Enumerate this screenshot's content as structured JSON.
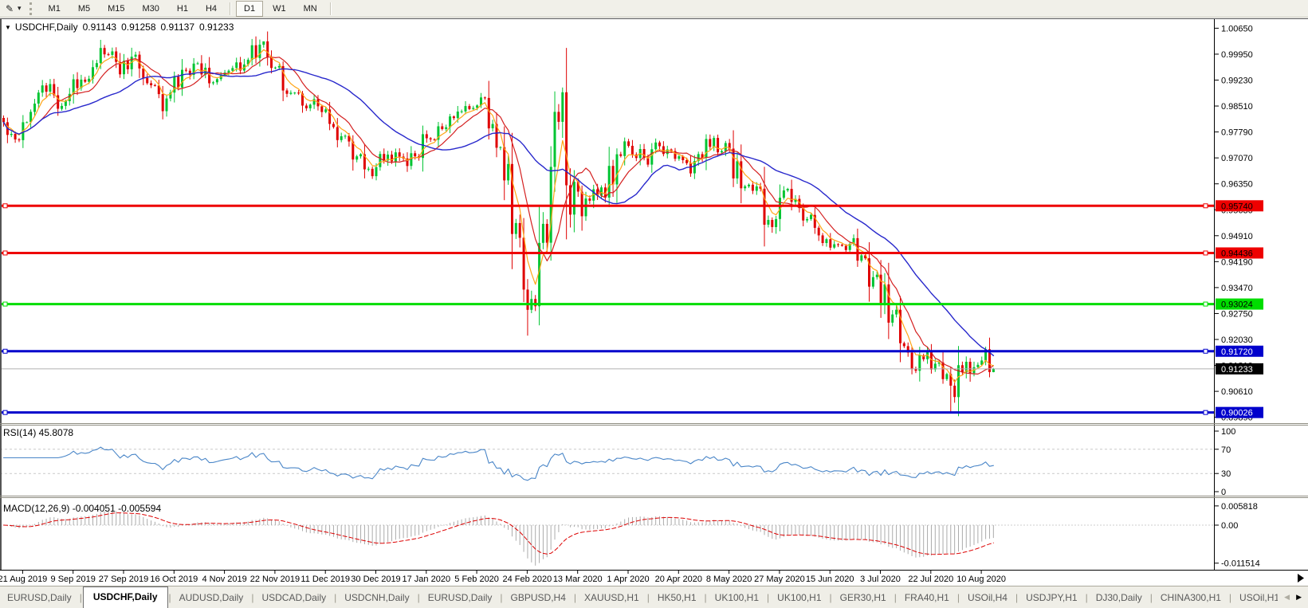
{
  "toolbar": {
    "chart_tool_icon": "pen-cursor-icon",
    "dropdown_icon": "caret-down-icon",
    "timeframes": [
      "M1",
      "M5",
      "M15",
      "M30",
      "H1",
      "H4",
      "D1",
      "W1",
      "MN"
    ],
    "active_timeframe": "D1"
  },
  "chart": {
    "title": {
      "symbol": "USDCHF,Daily",
      "open": "0.91143",
      "high": "0.91258",
      "low": "0.91137",
      "close": "0.91233"
    },
    "price_axis_ticks": [
      "1.00650",
      "0.99950",
      "0.99230",
      "0.98510",
      "0.97790",
      "0.97070",
      "0.96350",
      "0.95630",
      "0.94910",
      "0.94190",
      "0.93470",
      "0.92750",
      "0.92030",
      "0.91310",
      "0.90610",
      "0.89890"
    ],
    "date_axis": [
      "21 Aug 2019",
      "9 Sep 2019",
      "27 Sep 2019",
      "16 Oct 2019",
      "4 Nov 2019",
      "22 Nov 2019",
      "11 Dec 2019",
      "30 Dec 2019",
      "17 Jan 2020",
      "5 Feb 2020",
      "24 Feb 2020",
      "13 Mar 2020",
      "1 Apr 2020",
      "20 Apr 2020",
      "8 May 2020",
      "27 May 2020",
      "15 Jun 2020",
      "3 Jul 2020",
      "22 Jul 2020",
      "10 Aug 2020"
    ],
    "current_price_badge": {
      "label": "0.91233",
      "bg": "#000000",
      "fg": "#FFFFFF"
    }
  },
  "panes": {
    "rsi": {
      "label": "RSI(14) 45.8078",
      "axis": [
        "100",
        "70",
        "30",
        "0"
      ],
      "level_lines": [
        70,
        30
      ],
      "line_color": "#4A86C8"
    },
    "macd": {
      "label": "MACD(12,26,9) -0.004051 -0.005594",
      "axis": [
        "0.005818",
        "0.00",
        "-0.011514"
      ],
      "histogram_color": "#ABABAB",
      "signal_color": "#DD0000"
    }
  },
  "chart_data": {
    "type": "candlestick",
    "symbol": "USDCHF",
    "timeframe": "Daily",
    "visible_range": {
      "first_date": "21 Aug 2019",
      "last_date": "24 Aug 2020",
      "price_min": 0.8989,
      "price_max": 1.0065
    },
    "last_candle": {
      "open": 0.91143,
      "high": 0.91258,
      "low": 0.91137,
      "close": 0.91233
    },
    "current_price": 0.91233,
    "horizontal_lines": [
      {
        "price": 0.9574,
        "label": "0.95740",
        "color": "#EE0000",
        "label_text_color": "#000000",
        "role": "resistance"
      },
      {
        "price": 0.94436,
        "label": "0.94436",
        "color": "#EE0000",
        "label_text_color": "#000000",
        "role": "resistance"
      },
      {
        "price": 0.93024,
        "label": "0.93024",
        "color": "#00DD00",
        "label_text_color": "#000000",
        "role": "level"
      },
      {
        "price": 0.9172,
        "label": "0.91720",
        "color": "#0000CC",
        "label_text_color": "#FFFFFF",
        "role": "support"
      },
      {
        "price": 0.90026,
        "label": "0.90026",
        "color": "#0000CC",
        "label_text_color": "#FFFFFF",
        "role": "support"
      }
    ],
    "moving_averages": [
      {
        "name": "fast",
        "type": "sma",
        "period": 10,
        "color": "#D42020"
      },
      {
        "name": "mid",
        "type": "ema",
        "period": 5,
        "color": "#FFA516"
      },
      {
        "name": "slow",
        "type": "sma",
        "period": 30,
        "color": "#2828CC"
      }
    ],
    "indicators": {
      "rsi": {
        "period": 14,
        "last": 45.8078
      },
      "macd": {
        "fast": 12,
        "slow": 26,
        "signal": 9,
        "last": -0.004051,
        "signal_last": -0.005594
      }
    },
    "candle_up_color": "#00C432",
    "candle_down_color": "#DF0000",
    "price_anchors": [
      [
        0,
        0.98
      ],
      [
        3,
        0.9765
      ],
      [
        7,
        0.986
      ],
      [
        10,
        0.9905
      ],
      [
        15,
        0.9855
      ],
      [
        19,
        0.991
      ],
      [
        23,
        0.997
      ],
      [
        26,
        1.0
      ],
      [
        30,
        0.995
      ],
      [
        34,
        0.9985
      ],
      [
        38,
        0.99
      ],
      [
        41,
        0.985
      ],
      [
        45,
        0.9915
      ],
      [
        48,
        0.995
      ],
      [
        50,
        0.9965
      ],
      [
        55,
        0.992
      ],
      [
        59,
        0.994
      ],
      [
        63,
        0.9995
      ],
      [
        67,
        1.001
      ],
      [
        71,
        0.995
      ],
      [
        75,
        0.9875
      ],
      [
        80,
        0.985
      ],
      [
        85,
        0.979
      ],
      [
        91,
        0.9705
      ],
      [
        94,
        0.9665
      ],
      [
        99,
        0.9715
      ],
      [
        104,
        0.969
      ],
      [
        109,
        0.9755
      ],
      [
        114,
        0.9795
      ],
      [
        119,
        0.984
      ],
      [
        123,
        0.986
      ],
      [
        127,
        0.977
      ],
      [
        130,
        0.962
      ],
      [
        133,
        0.943
      ],
      [
        135,
        0.929
      ],
      [
        137,
        0.935
      ],
      [
        140,
        0.956
      ],
      [
        142,
        0.978
      ],
      [
        144,
        0.988
      ],
      [
        146,
        0.965
      ],
      [
        149,
        0.956
      ],
      [
        152,
        0.963
      ],
      [
        155,
        0.9585
      ],
      [
        157,
        0.968
      ],
      [
        161,
        0.9735
      ],
      [
        165,
        0.97
      ],
      [
        169,
        0.9735
      ],
      [
        174,
        0.971
      ],
      [
        178,
        0.968
      ],
      [
        182,
        0.9755
      ],
      [
        186,
        0.9715
      ],
      [
        190,
        0.964
      ],
      [
        194,
        0.9615
      ],
      [
        197,
        0.952
      ],
      [
        200,
        0.962
      ],
      [
        204,
        0.9575
      ],
      [
        208,
        0.953
      ],
      [
        214,
        0.946
      ],
      [
        219,
        0.9475
      ],
      [
        223,
        0.9385
      ],
      [
        227,
        0.932
      ],
      [
        231,
        0.922
      ],
      [
        235,
        0.913
      ],
      [
        238,
        0.9175
      ],
      [
        241,
        0.912
      ],
      [
        244,
        0.906
      ],
      [
        247,
        0.913
      ],
      [
        250,
        0.91
      ],
      [
        252,
        0.916
      ],
      [
        254,
        0.91143
      ],
      [
        255,
        0.91233
      ]
    ],
    "seed": 1234567
  },
  "tabs": {
    "items": [
      {
        "label": "EURUSD,Daily",
        "active": false
      },
      {
        "label": "USDCHF,Daily",
        "active": true
      },
      {
        "label": "AUDUSD,Daily",
        "active": false
      },
      {
        "label": "USDCAD,Daily",
        "active": false
      },
      {
        "label": "USDCNH,Daily",
        "active": false
      },
      {
        "label": "EURUSD,Daily",
        "active": false
      },
      {
        "label": "GBPUSD,H4",
        "active": false
      },
      {
        "label": "XAUUSD,H1",
        "active": false
      },
      {
        "label": "HK50,H1",
        "active": false
      },
      {
        "label": "UK100,H1",
        "active": false
      },
      {
        "label": "UK100,H1",
        "active": false
      },
      {
        "label": "GER30,H1",
        "active": false
      },
      {
        "label": "FRA40,H1",
        "active": false
      },
      {
        "label": "USOil,H4",
        "active": false
      },
      {
        "label": "USDJPY,H1",
        "active": false
      },
      {
        "label": "DJ30,Daily",
        "active": false
      },
      {
        "label": "CHINA300,H1",
        "active": false
      },
      {
        "label": "USOil,H1",
        "active": false
      }
    ],
    "scroll_left_icon": "◀",
    "scroll_right_icon": "▶"
  }
}
